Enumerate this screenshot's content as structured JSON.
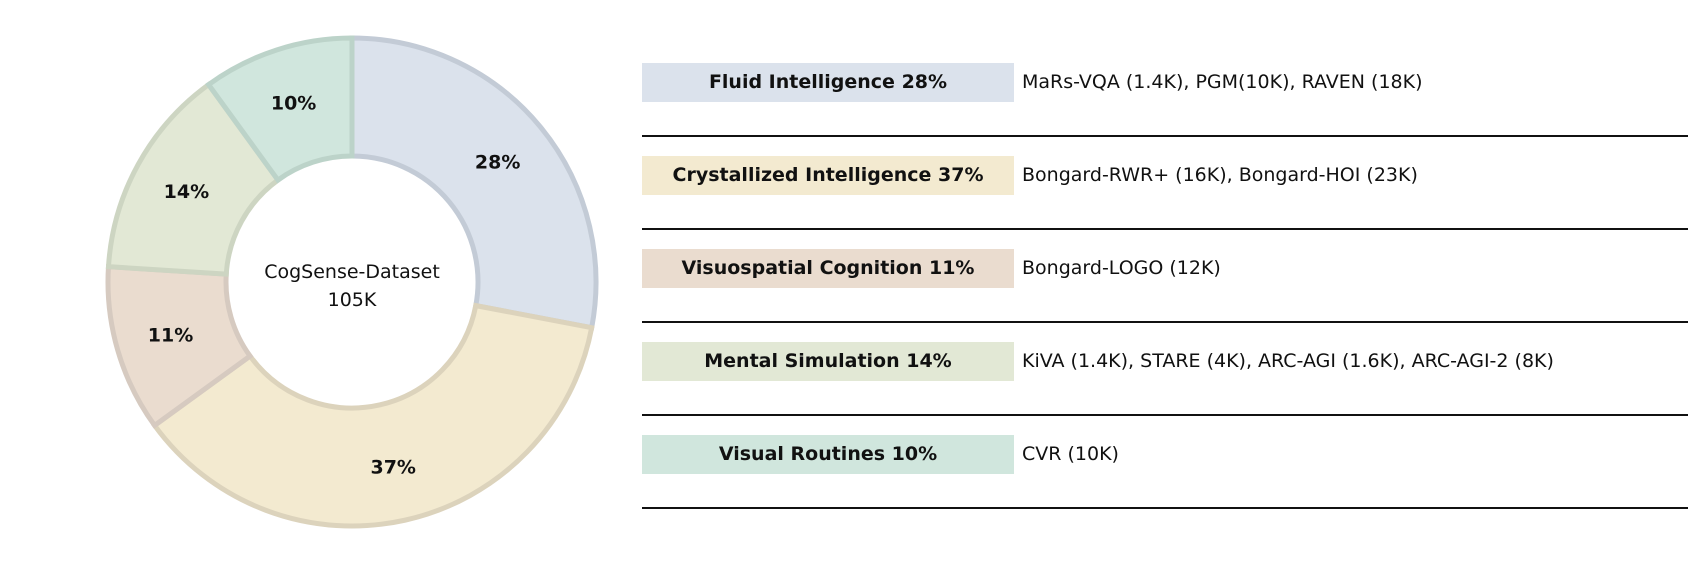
{
  "chart_data": {
    "type": "pie",
    "variant": "donut",
    "center_label": [
      "CogSense-Dataset",
      "105K"
    ],
    "start": "top",
    "direction": "clockwise",
    "slices": [
      {
        "label": "28%",
        "value": 28,
        "color": "#dbe2ec",
        "stroke": "#c3cbd6"
      },
      {
        "label": "37%",
        "value": 37,
        "color": "#f3ead0",
        "stroke": "#dcd3bc"
      },
      {
        "label": "11%",
        "value": 11,
        "color": "#eadccf",
        "stroke": "#d6cac0"
      },
      {
        "label": "14%",
        "value": 14,
        "color": "#e2e8d5",
        "stroke": "#cdd5c2"
      },
      {
        "label": "10%",
        "value": 10,
        "color": "#d0e6dd",
        "stroke": "#bcd3c9"
      }
    ]
  },
  "legend": [
    {
      "label": "Fluid Intelligence 28%",
      "datasets": "MaRs-VQA (1.4K), PGM(10K), RAVEN (18K)",
      "color": "#dbe2ec"
    },
    {
      "label": "Crystallized Intelligence 37%",
      "datasets": "Bongard-RWR+ (16K), Bongard-HOI (23K)",
      "color": "#f3ead0"
    },
    {
      "label": "Visuospatial Cognition 11%",
      "datasets": "Bongard-LOGO (12K)",
      "color": "#eadccf"
    },
    {
      "label": "Mental Simulation 14%",
      "datasets": "KiVA (1.4K), STARE (4K), ARC-AGI (1.6K), ARC-AGI-2 (8K)",
      "color": "#e2e8d5"
    },
    {
      "label": "Visual Routines 10%",
      "datasets": "CVR (10K)",
      "color": "#d0e6dd"
    }
  ]
}
